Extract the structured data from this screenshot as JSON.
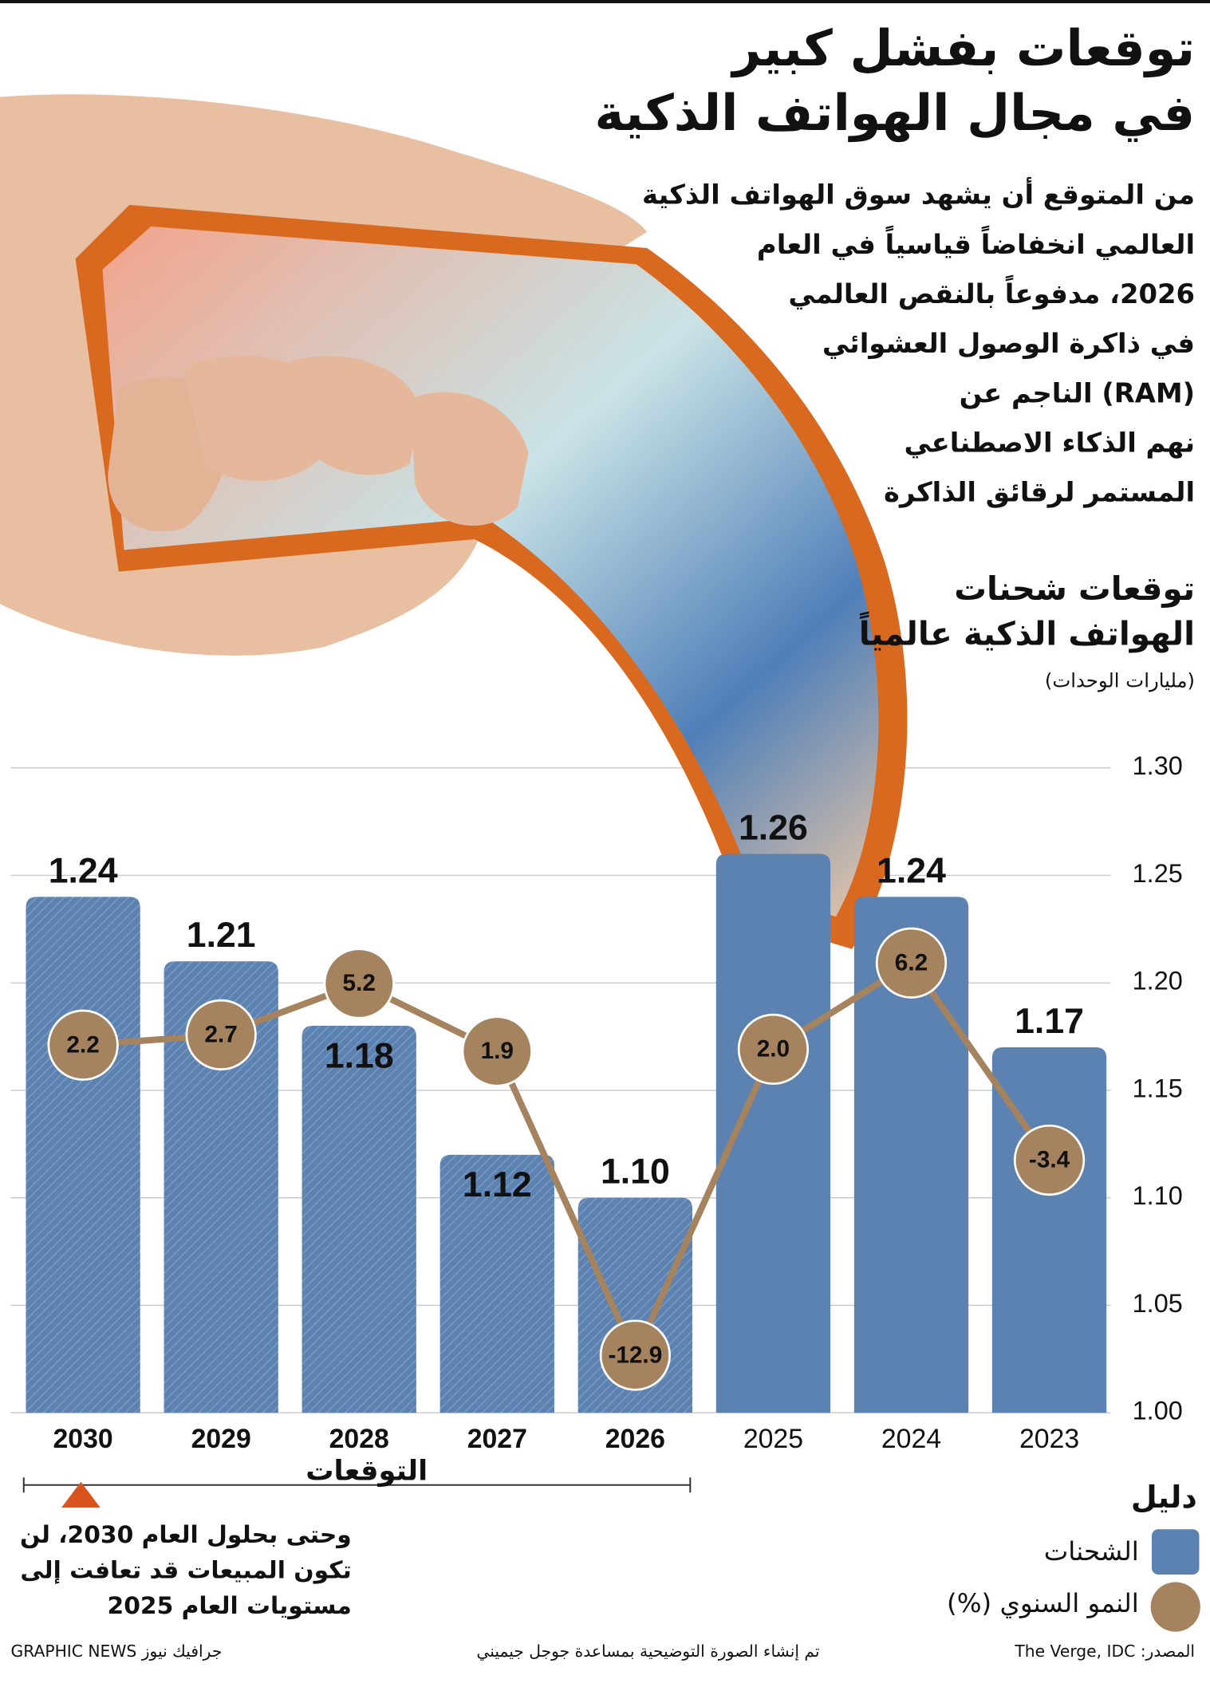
{
  "header": {
    "title_lines": [
      "توقعات بفشل كبير",
      "في مجال الهواتف الذكية"
    ],
    "intro_lines": [
      "من المتوقع أن يشهد سوق الهواتف الذكية",
      "العالمي انخفاضاً قياسياً في العام",
      "2026، مدفوعاً بالنقص العالمي",
      "في ذاكرة الوصول العشوائي",
      "(RAM) الناجم عن",
      "نهم الذكاء الاصطناعي",
      "المستمر لرقائق الذاكرة"
    ]
  },
  "chart_data": {
    "type": "bar_line",
    "title_lines": [
      "توقعات شحنات",
      "الهواتف الذكية عالمياً"
    ],
    "subtitle": "(مليارات الوحدات)",
    "categories": [
      "2023",
      "2024",
      "2025",
      "2026",
      "2027",
      "2028",
      "2029",
      "2030"
    ],
    "x_reversed": true,
    "forecast_start_index": 3,
    "forecast_label": "التوقعات",
    "series": [
      {
        "name": "الشحنات",
        "type": "bar",
        "color": "#5b82b0",
        "values": [
          1.17,
          1.24,
          1.26,
          1.1,
          1.12,
          1.18,
          1.21,
          1.24
        ],
        "value_labels": [
          "1.17",
          "1.24",
          "1.26",
          "1.10",
          "1.12",
          "1.18",
          "1.21",
          "1.24"
        ]
      },
      {
        "name": "النمو السنوي (%)",
        "type": "line",
        "axis": "y2",
        "color": "#a5835f",
        "values": [
          -3.4,
          6.2,
          2.0,
          -12.9,
          1.9,
          5.2,
          2.7,
          2.2
        ],
        "value_labels": [
          "-3.4",
          "6.2",
          "2.0",
          "-12.9",
          "1.9",
          "5.2",
          "2.7",
          "2.2"
        ]
      }
    ],
    "ylim": [
      1.0,
      1.3
    ],
    "yticks": [
      {
        "value": 1.0,
        "label": "1.00"
      },
      1.05,
      {
        "value": 1.1,
        "label": "1.10"
      },
      1.15,
      {
        "value": 1.2,
        "label": "1.20"
      },
      1.25,
      {
        "value": 1.3,
        "label": "1.30"
      }
    ],
    "y2lim": [
      -15.7,
      15.7
    ],
    "grid": true,
    "legend_title": "دليل",
    "legend_position": "bottom-right",
    "annotation_lines": [
      "وحتى بحلول العام 2030، لن",
      "تكون المبيعات قد تعافت إلى",
      "مستويات العام 2025"
    ]
  },
  "footer": {
    "source": "المصدر: The Verge, IDC",
    "credit": "تم إنشاء الصورة التوضيحية بمساعدة جوجل جيميني",
    "brand": "GRAPHIC NEWS جرافيك نيوز"
  }
}
